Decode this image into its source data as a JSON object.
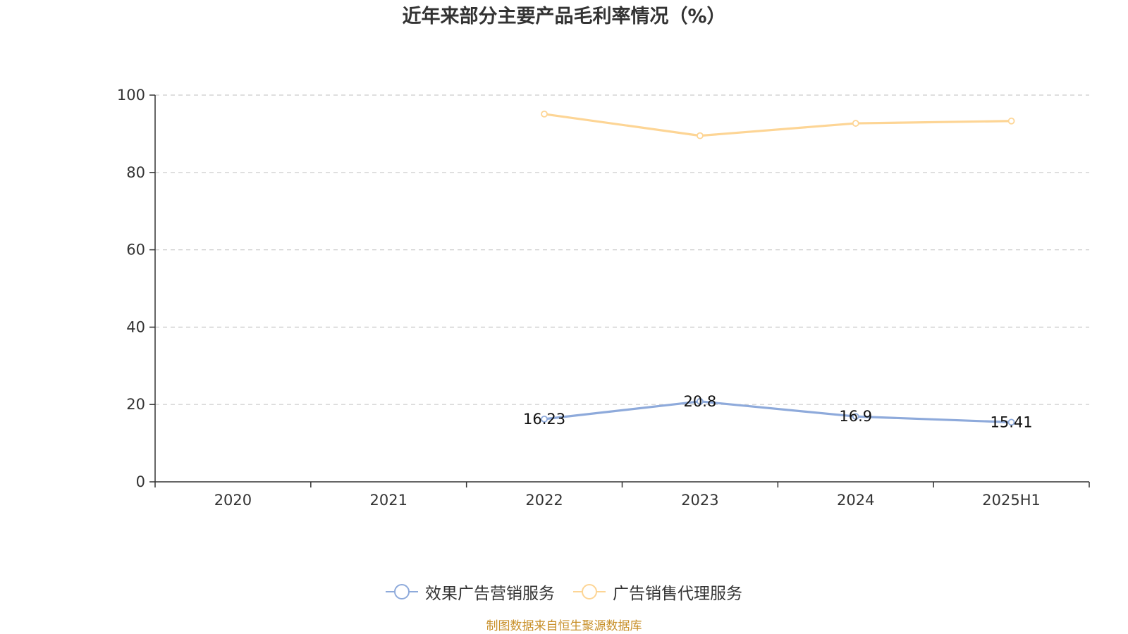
{
  "chart_data": {
    "type": "line",
    "title": "近年来部分主要产品毛利率情况（%）",
    "categories": [
      "2020",
      "2021",
      "2022",
      "2023",
      "2024",
      "2025H1"
    ],
    "ylim": [
      0,
      100
    ],
    "yticks": [
      0,
      20,
      40,
      60,
      80,
      100
    ],
    "grid": true,
    "legend_position": "bottom",
    "series": [
      {
        "name": "效果广告营销服务",
        "color": "#8eaadb",
        "values": [
          null,
          null,
          16.23,
          20.8,
          16.9,
          15.41
        ],
        "labels": [
          "",
          "",
          "16.23",
          "20.8",
          "16.9",
          "15.41"
        ]
      },
      {
        "name": "广告销售代理服务",
        "color": "#fdd595",
        "values": [
          null,
          null,
          95.1,
          89.5,
          92.7,
          93.3
        ]
      }
    ]
  },
  "source": "制图数据来自恒生聚源数据库"
}
